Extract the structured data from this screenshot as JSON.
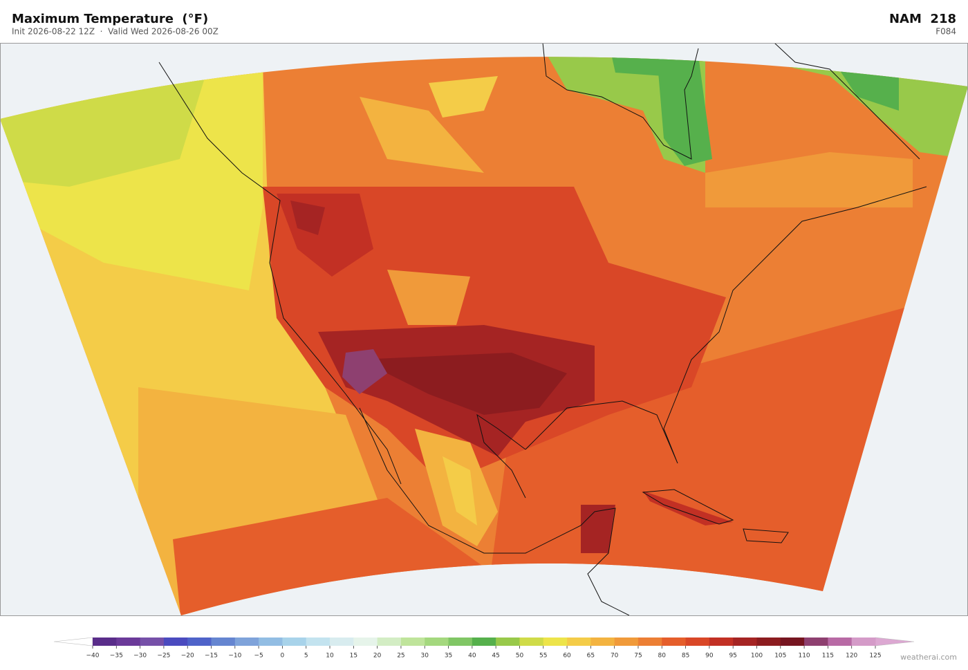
{
  "header": {
    "title": "Maximum Temperature  (°F)",
    "subtitle": "Init 2026-08-22 12Z  ·  Valid Wed 2026-08-26 00Z",
    "model": "NAM  218",
    "forecast_hour": "F084"
  },
  "colorbar": {
    "ticks": [
      {
        "value": -40,
        "label": "−40"
      },
      {
        "value": -35,
        "label": "−35"
      },
      {
        "value": -30,
        "label": "−30"
      },
      {
        "value": -25,
        "label": "−25"
      },
      {
        "value": -20,
        "label": "−20"
      },
      {
        "value": -15,
        "label": "−15"
      },
      {
        "value": -10,
        "label": "−10"
      },
      {
        "value": -5,
        "label": "−5"
      },
      0,
      5,
      10,
      15,
      20,
      25,
      30,
      35,
      40,
      45,
      50,
      55,
      60,
      65,
      70,
      75,
      80,
      85,
      90,
      95,
      100,
      105,
      110,
      115,
      120,
      125
    ],
    "colors": [
      "#5a2d8a",
      "#6b3a99",
      "#7650a8",
      "#4b4bbf",
      "#4f63c9",
      "#6585d0",
      "#7fa3da",
      "#92bde3",
      "#a8d3ea",
      "#c3e3ef",
      "#d8ecef",
      "#e6f4ea",
      "#d3edc4",
      "#bfe49b",
      "#a4d87e",
      "#80c665",
      "#56b04c",
      "#98c94a",
      "#cfdb48",
      "#ede44a",
      "#f4cc48",
      "#f3b340",
      "#f09a3a",
      "#ec7f34",
      "#e55e2b",
      "#d94727",
      "#c23024",
      "#a52423",
      "#8c1c1f",
      "#761520",
      "#8e4070",
      "#b86aa5",
      "#d49bc8"
    ],
    "under_color": "#ffffff",
    "over_color": "#dca8d2"
  },
  "footer": {
    "watermark": "weatherai.com"
  }
}
